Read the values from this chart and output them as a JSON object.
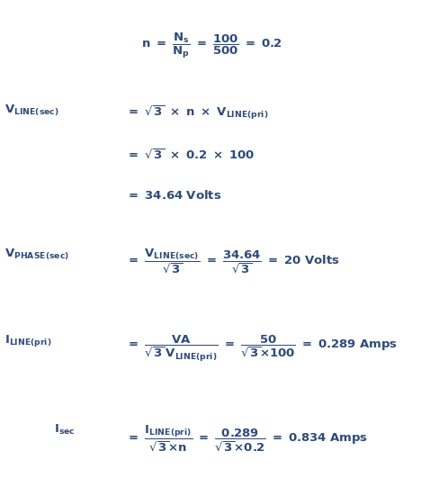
{
  "bg_color": "#ffffff",
  "text_color": "#2e4a7a",
  "fig_width": 4.68,
  "fig_height": 5.51,
  "dpi": 100
}
